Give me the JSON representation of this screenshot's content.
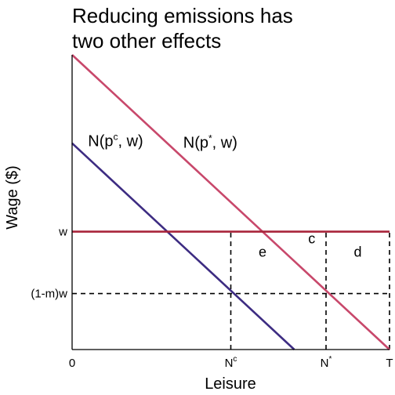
{
  "title_lines": [
    "Reducing emissions has",
    "two other effects"
  ],
  "chart_data": {
    "type": "line",
    "xlabel": "Leisure",
    "ylabel": "Wage ($)",
    "x_ticks": [
      {
        "key": "zero",
        "label": "0",
        "value": 0
      },
      {
        "key": "nc",
        "label": "N",
        "sup": "c",
        "value": 0.5
      },
      {
        "key": "nstar",
        "label": "N",
        "sup": "*",
        "value": 0.8
      },
      {
        "key": "t",
        "label": "T",
        "value": 1
      }
    ],
    "y_ticks": [
      {
        "key": "w",
        "label": "w",
        "value": 0.4
      },
      {
        "key": "mw",
        "label": "(1-m)w",
        "value": 0.19
      }
    ],
    "series": [
      {
        "key": "pstar",
        "name": "N(p*, w)",
        "color": "#c8486b",
        "points": [
          [
            0,
            1
          ],
          [
            1,
            0
          ]
        ],
        "label": {
          "pre": "N(p",
          "sup": "*",
          "post": ", w)"
        }
      },
      {
        "key": "pc",
        "name": "N(pc, w)",
        "color": "#3d2c82",
        "points": [
          [
            0,
            0.7
          ],
          [
            0.7,
            0
          ]
        ],
        "label": {
          "pre": "N(p",
          "sup": "c",
          "post": ", w)"
        }
      },
      {
        "key": "wage",
        "name": "w",
        "color": "#a8243a",
        "points": [
          [
            0,
            0.4
          ],
          [
            1,
            0.4
          ]
        ]
      }
    ],
    "dashed_lines": [
      {
        "key": "mw",
        "points": [
          [
            0,
            0.19
          ],
          [
            1,
            0.19
          ]
        ]
      },
      {
        "key": "nc",
        "points": [
          [
            0.5,
            0
          ],
          [
            0.5,
            0.4
          ]
        ]
      },
      {
        "key": "nstar",
        "points": [
          [
            0.8,
            0
          ],
          [
            0.8,
            0.4
          ]
        ]
      },
      {
        "key": "t",
        "points": [
          [
            1,
            0
          ],
          [
            1,
            0.4
          ]
        ]
      }
    ],
    "region_labels": [
      {
        "key": "e",
        "text": "e",
        "at": [
          0.6,
          0.315
        ]
      },
      {
        "key": "c",
        "text": "c",
        "at": [
          0.755,
          0.36
        ]
      },
      {
        "key": "d",
        "text": "d",
        "at": [
          0.9,
          0.315
        ]
      }
    ],
    "colors": {
      "axis": "#000000",
      "dashed": "#000000"
    }
  }
}
